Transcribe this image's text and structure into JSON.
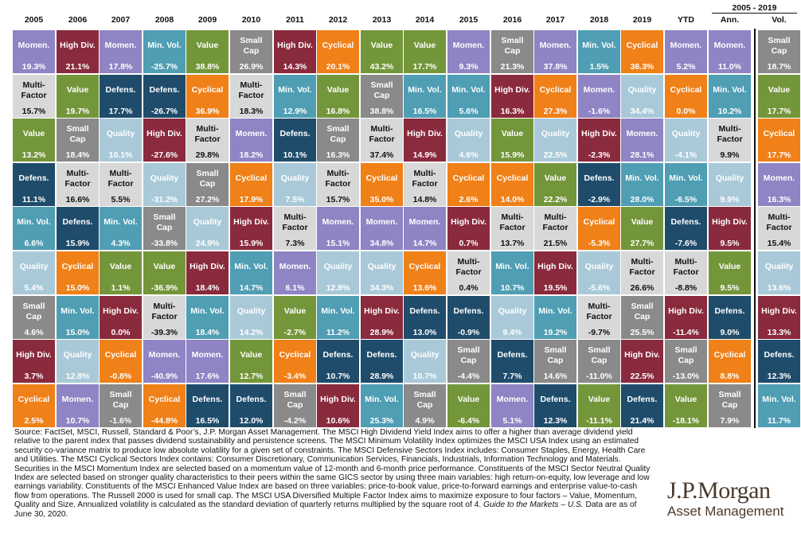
{
  "chart_data": {
    "type": "table",
    "title": "",
    "columns": [
      "2005",
      "2006",
      "2007",
      "2008",
      "2009",
      "2010",
      "2011",
      "2012",
      "2013",
      "2014",
      "2015",
      "2016",
      "2017",
      "2018",
      "2019",
      "YTD",
      "Ann.",
      "Vol."
    ],
    "span_header": "2005 - 2019",
    "colors": {
      "Momen.": "#8f84c4",
      "Value": "#74963a",
      "Min. Vol.": "#4f9eb4",
      "Small Cap": "#8a8a8a",
      "High Div.": "#8a2a3d",
      "Cyclical": "#f08018",
      "Multi-Factor": "#d8d8d8",
      "Defens.": "#1f4c6b",
      "Quality": "#a9c9d9"
    },
    "dark_text_factors": [
      "Multi-Factor"
    ],
    "ranks": [
      [
        [
          "Momen.",
          "19.3%"
        ],
        [
          "High Div.",
          "21.1%"
        ],
        [
          "Momen.",
          "17.8%"
        ],
        [
          "Min. Vol.",
          "-25.7%"
        ],
        [
          "Value",
          "38.8%"
        ],
        [
          "Small Cap",
          "26.9%"
        ],
        [
          "High Div.",
          "14.3%"
        ],
        [
          "Cyclical",
          "20.1%"
        ],
        [
          "Value",
          "43.2%"
        ],
        [
          "Value",
          "17.7%"
        ],
        [
          "Momen.",
          "9.3%"
        ],
        [
          "Small Cap",
          "21.3%"
        ],
        [
          "Momen.",
          "37.8%"
        ],
        [
          "Min. Vol.",
          "1.5%"
        ],
        [
          "Cyclical",
          "36.3%"
        ],
        [
          "Momen.",
          "5.2%"
        ],
        [
          "Momen.",
          "11.0%"
        ],
        [
          "Small Cap",
          "18.7%"
        ]
      ],
      [
        [
          "Multi-Factor",
          "15.7%"
        ],
        [
          "Value",
          "19.7%"
        ],
        [
          "Defens.",
          "17.7%"
        ],
        [
          "Defens.",
          "-26.7%"
        ],
        [
          "Cyclical",
          "36.9%"
        ],
        [
          "Multi-Factor",
          "18.3%"
        ],
        [
          "Min. Vol.",
          "12.9%"
        ],
        [
          "Value",
          "16.8%"
        ],
        [
          "Small Cap",
          "38.8%"
        ],
        [
          "Min. Vol.",
          "16.5%"
        ],
        [
          "Min. Vol.",
          "5.6%"
        ],
        [
          "High Div.",
          "16.3%"
        ],
        [
          "Cyclical",
          "27.3%"
        ],
        [
          "Momen.",
          "-1.6%"
        ],
        [
          "Quality",
          "34.4%"
        ],
        [
          "Cyclical",
          "0.0%"
        ],
        [
          "Min. Vol.",
          "10.2%"
        ],
        [
          "Value",
          "17.7%"
        ]
      ],
      [
        [
          "Value",
          "13.2%"
        ],
        [
          "Small Cap",
          "18.4%"
        ],
        [
          "Quality",
          "10.1%"
        ],
        [
          "High Div.",
          "-27.6%"
        ],
        [
          "Multi-Factor",
          "29.8%"
        ],
        [
          "Momen.",
          "18.2%"
        ],
        [
          "Defens.",
          "10.1%"
        ],
        [
          "Small Cap",
          "16.3%"
        ],
        [
          "Multi-Factor",
          "37.4%"
        ],
        [
          "High Div.",
          "14.9%"
        ],
        [
          "Quality",
          "4.6%"
        ],
        [
          "Value",
          "15.9%"
        ],
        [
          "Quality",
          "22.5%"
        ],
        [
          "High Div.",
          "-2.3%"
        ],
        [
          "Momen.",
          "28.1%"
        ],
        [
          "Quality",
          "-4.1%"
        ],
        [
          "Multi-Factor",
          "9.9%"
        ],
        [
          "Cyclical",
          "17.7%"
        ]
      ],
      [
        [
          "Defens.",
          "11.1%"
        ],
        [
          "Multi-Factor",
          "16.6%"
        ],
        [
          "Multi-Factor",
          "5.5%"
        ],
        [
          "Quality",
          "-31.2%"
        ],
        [
          "Small Cap",
          "27.2%"
        ],
        [
          "Cyclical",
          "17.9%"
        ],
        [
          "Quality",
          "7.5%"
        ],
        [
          "Multi-Factor",
          "15.7%"
        ],
        [
          "Cyclical",
          "35.0%"
        ],
        [
          "Multi-Factor",
          "14.8%"
        ],
        [
          "Cyclical",
          "2.6%"
        ],
        [
          "Cyclical",
          "14.0%"
        ],
        [
          "Value",
          "22.2%"
        ],
        [
          "Defens.",
          "-2.9%"
        ],
        [
          "Min. Vol.",
          "28.0%"
        ],
        [
          "Min. Vol.",
          "-6.5%"
        ],
        [
          "Quality",
          "9.9%"
        ],
        [
          "Momen.",
          "16.3%"
        ]
      ],
      [
        [
          "Min. Vol.",
          "6.6%"
        ],
        [
          "Defens.",
          "15.9%"
        ],
        [
          "Min. Vol.",
          "4.3%"
        ],
        [
          "Small Cap",
          "-33.8%"
        ],
        [
          "Quality",
          "24.9%"
        ],
        [
          "High Div.",
          "15.9%"
        ],
        [
          "Multi-Factor",
          "7.3%"
        ],
        [
          "Momen.",
          "15.1%"
        ],
        [
          "Momen.",
          "34.8%"
        ],
        [
          "Momen.",
          "14.7%"
        ],
        [
          "High Div.",
          "0.7%"
        ],
        [
          "Multi-Factor",
          "13.7%"
        ],
        [
          "Multi-Factor",
          "21.5%"
        ],
        [
          "Cyclical",
          "-5.3%"
        ],
        [
          "Value",
          "27.7%"
        ],
        [
          "Defens.",
          "-7.6%"
        ],
        [
          "High Div.",
          "9.5%"
        ],
        [
          "Multi-Factor",
          "15.4%"
        ]
      ],
      [
        [
          "Quality",
          "5.4%"
        ],
        [
          "Cyclical",
          "15.0%"
        ],
        [
          "Value",
          "1.1%"
        ],
        [
          "Value",
          "-36.9%"
        ],
        [
          "High Div.",
          "18.4%"
        ],
        [
          "Min. Vol.",
          "14.7%"
        ],
        [
          "Momen.",
          "6.1%"
        ],
        [
          "Quality",
          "12.8%"
        ],
        [
          "Quality",
          "34.3%"
        ],
        [
          "Cyclical",
          "13.6%"
        ],
        [
          "Multi-Factor",
          "0.4%"
        ],
        [
          "Min. Vol.",
          "10.7%"
        ],
        [
          "High Div.",
          "19.5%"
        ],
        [
          "Quality",
          "-5.6%"
        ],
        [
          "Multi-Factor",
          "26.6%"
        ],
        [
          "Multi-Factor",
          "-8.8%"
        ],
        [
          "Value",
          "9.5%"
        ],
        [
          "Quality",
          "13.6%"
        ]
      ],
      [
        [
          "Small Cap",
          "4.6%"
        ],
        [
          "Min. Vol.",
          "15.0%"
        ],
        [
          "High Div.",
          "0.0%"
        ],
        [
          "Multi-Factor",
          "-39.3%"
        ],
        [
          "Min. Vol.",
          "18.4%"
        ],
        [
          "Quality",
          "14.2%"
        ],
        [
          "Value",
          "-2.7%"
        ],
        [
          "Min. Vol.",
          "11.2%"
        ],
        [
          "High Div.",
          "28.9%"
        ],
        [
          "Defens.",
          "13.0%"
        ],
        [
          "Defens.",
          "-0.9%"
        ],
        [
          "Quality",
          "9.4%"
        ],
        [
          "Min. Vol.",
          "19.2%"
        ],
        [
          "Multi-Factor",
          "-9.7%"
        ],
        [
          "Small Cap",
          "25.5%"
        ],
        [
          "High Div.",
          "-11.4%"
        ],
        [
          "Defens.",
          "9.0%"
        ],
        [
          "High Div.",
          "13.3%"
        ]
      ],
      [
        [
          "High Div.",
          "3.7%"
        ],
        [
          "Quality",
          "12.8%"
        ],
        [
          "Cyclical",
          "-0.8%"
        ],
        [
          "Momen.",
          "-40.9%"
        ],
        [
          "Momen.",
          "17.6%"
        ],
        [
          "Value",
          "12.7%"
        ],
        [
          "Cyclical",
          "-3.4%"
        ],
        [
          "Defens.",
          "10.7%"
        ],
        [
          "Defens.",
          "28.9%"
        ],
        [
          "Quality",
          "10.7%"
        ],
        [
          "Small Cap",
          "-4.4%"
        ],
        [
          "Defens.",
          "7.7%"
        ],
        [
          "Small Cap",
          "14.6%"
        ],
        [
          "Small Cap",
          "-11.0%"
        ],
        [
          "High Div.",
          "22.5%"
        ],
        [
          "Small Cap",
          "-13.0%"
        ],
        [
          "Cyclical",
          "8.8%"
        ],
        [
          "Defens.",
          "12.3%"
        ]
      ],
      [
        [
          "Cyclical",
          "2.5%"
        ],
        [
          "Momen.",
          "10.7%"
        ],
        [
          "Small Cap",
          "-1.6%"
        ],
        [
          "Cyclical",
          "-44.8%"
        ],
        [
          "Defens.",
          "16.5%"
        ],
        [
          "Defens.",
          "12.0%"
        ],
        [
          "Small Cap",
          "-4.2%"
        ],
        [
          "High Div.",
          "10.6%"
        ],
        [
          "Min. Vol.",
          "25.3%"
        ],
        [
          "Small Cap",
          "4.9%"
        ],
        [
          "Value",
          "-6.4%"
        ],
        [
          "Momen.",
          "5.1%"
        ],
        [
          "Defens.",
          "12.3%"
        ],
        [
          "Value",
          "-11.1%"
        ],
        [
          "Defens.",
          "21.4%"
        ],
        [
          "Value",
          "-18.1%"
        ],
        [
          "Small Cap",
          "7.9%"
        ],
        [
          "Min. Vol.",
          "11.7%"
        ]
      ]
    ]
  },
  "footnote": {
    "main": "Source: FactSet, MSCI, Russell, Standard & Poor’s, J.P. Morgan Asset Management. The MSCI High Dividend Yield Index aims to offer a higher than average dividend yield relative to the parent index that passes dividend sustainability and persistence screens. The MSCI Minimum Volatility Index optimizes the MSCI USA Index using an estimated security co-variance matrix to produce low absolute volatility for a given set of constraints. The MSCI Defensive Sectors Index includes: Consumer Staples, Energy, Health Care and Utilities. The MSCI Cyclical Sectors Index contains: Consumer Discretionary, Communication Services, Financials, Industrials, Information Technology and Materials. Securities in the MSCI Momentum Index are selected based on a momentum value of 12-month and 6-month price performance. Constituents of the MSCI Sector Neutral Quality Index are selected based on stronger quality characteristics to their peers within the same GICS sector by using three main variables: high return-on-equity, low leverage and low earnings variability. Constituents of the MSCI Enhanced Value Index are based on three variables: price-to-book value, price-to-forward earnings and enterprise value-to-cash flow from operations. The Russell 2000 is used for small cap. The MSCI USA Diversified Multiple Factor Index aims to maximize exposure to four factors – Value, Momentum, Quality and Size. Annualized volatility is calculated as the standard deviation of quarterly returns multiplied by the square root of 4.",
    "guide_title": "Guide to the Markets – U.S.",
    "tail": "Data are as of June 30, 2020."
  },
  "logo": {
    "line1": "J.P.Morgan",
    "line2": "Asset Management"
  }
}
